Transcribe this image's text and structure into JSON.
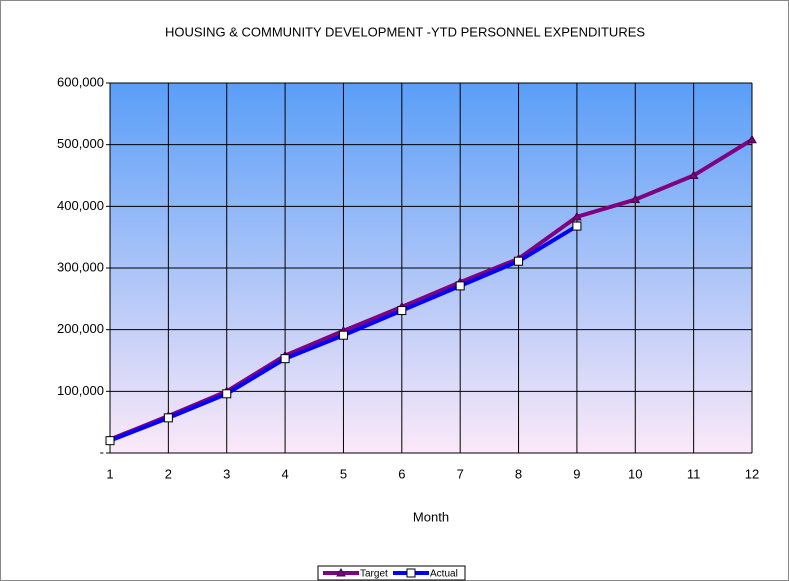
{
  "chart_data": {
    "type": "line",
    "title": "HOUSING & COMMUNITY DEVELOPMENT -YTD PERSONNEL EXPENDITURES",
    "x_label": "Month",
    "categories": [
      "1",
      "2",
      "3",
      "4",
      "5",
      "6",
      "7",
      "8",
      "9",
      "10",
      "11",
      "12"
    ],
    "series": [
      {
        "name": "Target",
        "color": "#800080",
        "marker": "triangle",
        "values": [
          22000,
          60000,
          100000,
          158000,
          198000,
          237000,
          277000,
          315000,
          383000,
          411000,
          450000,
          508000
        ]
      },
      {
        "name": "Actual",
        "color": "#0000ff",
        "marker": "square",
        "values": [
          20000,
          57000,
          96000,
          153000,
          191000,
          231000,
          271000,
          311000,
          368000,
          null,
          null,
          null
        ]
      }
    ],
    "ylim": [
      0,
      600000
    ],
    "yticks": [
      {
        "value": 0,
        "label": "-"
      },
      {
        "value": 100000,
        "label": "100,000"
      },
      {
        "value": 200000,
        "label": "200,000"
      },
      {
        "value": 300000,
        "label": "300,000"
      },
      {
        "value": 400000,
        "label": "400,000"
      },
      {
        "value": 500000,
        "label": "500,000"
      },
      {
        "value": 600000,
        "label": "600,000"
      }
    ],
    "grid": true,
    "legend": "bottom"
  }
}
